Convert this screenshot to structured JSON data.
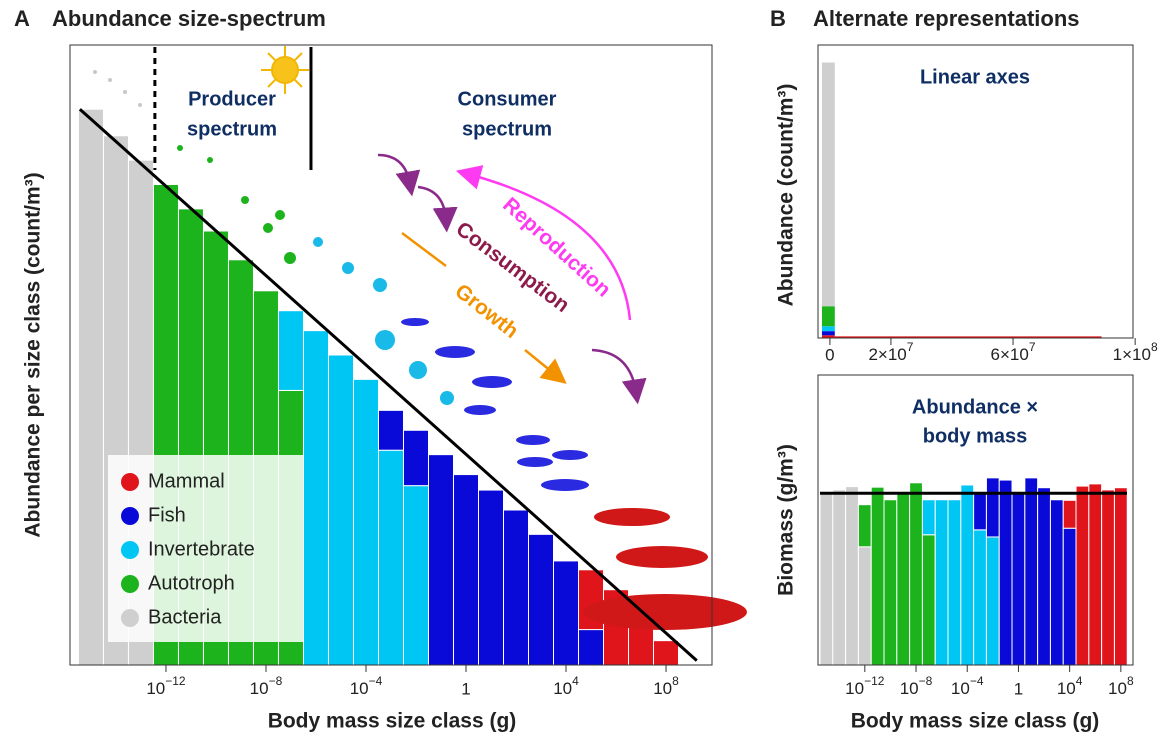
{
  "chart_data": [
    {
      "type": "histogram",
      "panel": "A",
      "title": "Abundance size-spectrum",
      "xlabel": "Body mass size class (g)",
      "ylabel": "Abundance per size class (count/m³)",
      "xscale": "log",
      "xlim": [
        1.45e-16,
        6900000000.0
      ],
      "xticks": [
        {
          "value": 1e-12,
          "label": "10−12"
        },
        {
          "value": 1e-08,
          "label": "10−8"
        },
        {
          "value": 0.0001,
          "label": "10−4"
        },
        1,
        {
          "value": 10000,
          "label": "104"
        },
        {
          "value": 100000000,
          "label": "108"
        }
      ],
      "ylim": [
        0,
        28
      ],
      "bins": [
        3.16e-16,
        3.16e-15,
        3.16e-14,
        3.16e-13,
        3.16e-12,
        3.16e-11,
        3.16e-10,
        3.16e-09,
        3.16e-08,
        3.16e-07,
        3.16e-06,
        3.16e-05,
        0.000316,
        0.00316,
        0.0316,
        0.316,
        3.16,
        31.6,
        316,
        3160,
        31600,
        316000,
        3160000,
        31600000,
        316000000
      ],
      "edgecolor": "#ffffff",
      "legend": "lower left",
      "series": [
        {
          "name": "Mammal",
          "color": "#e0141b",
          "values": [
            null,
            null,
            null,
            null,
            null,
            null,
            null,
            null,
            null,
            null,
            null,
            null,
            null,
            null,
            null,
            null,
            null,
            null,
            null,
            null,
            2.7,
            3.4,
            2.3,
            1.1
          ]
        },
        {
          "name": "Fish",
          "color": "#0a0ad8",
          "values": [
            null,
            null,
            null,
            null,
            null,
            null,
            null,
            null,
            null,
            null,
            null,
            null,
            1.8,
            2.5,
            9.5,
            8.6,
            7.9,
            7.0,
            5.9,
            4.7,
            1.6,
            null,
            null,
            null
          ]
        },
        {
          "name": "Invertebrate",
          "color": "#00c6f4",
          "values": [
            null,
            null,
            null,
            null,
            null,
            null,
            null,
            null,
            3.6,
            15.1,
            14.0,
            12.9,
            9.7,
            8.1,
            null,
            null,
            null,
            null,
            null,
            null,
            null,
            null,
            null,
            null
          ]
        },
        {
          "name": "Autotroph",
          "color": "#1db31d",
          "values": [
            null,
            null,
            null,
            21.7,
            20.6,
            19.6,
            18.3,
            16.9,
            12.4,
            null,
            null,
            null,
            null,
            null,
            null,
            null,
            null,
            null,
            null,
            null,
            null,
            null,
            null,
            null
          ]
        },
        {
          "name": "Bacteria",
          "color": "#cfcfcf",
          "values": [
            25.1,
            23.9,
            22.8,
            null,
            null,
            null,
            null,
            null,
            null,
            null,
            null,
            null,
            null,
            null,
            null,
            null,
            null,
            null,
            null,
            null,
            null,
            null,
            null,
            null
          ]
        }
      ],
      "trend": {
        "x": [
          3.6e-16,
          1700000000.0
        ],
        "y": [
          25.1,
          0.2
        ]
      },
      "xlines": [
        {
          "value": 3.6e-13,
          "style": "dashed"
        },
        {
          "value": 6.3e-07,
          "style": "solid"
        }
      ],
      "annotations": {
        "producer": [
          "Producer",
          "spectrum"
        ],
        "consumer": [
          "Consumer",
          "spectrum"
        ],
        "reproduction": "Reproduction",
        "consumption": "Consumption",
        "growth": "Growth"
      }
    },
    {
      "type": "histogram",
      "panel": "B",
      "title": "Alternate representations",
      "subtitle": "Linear axes",
      "ylabel": "Abundance (count/m³)",
      "xscale": "linear",
      "xlim": [
        -3900000,
        99300000
      ],
      "xticks": [
        0,
        {
          "value": 20000000,
          "label": "2×107"
        },
        {
          "value": 60000000,
          "label": "6×107"
        },
        {
          "value": 100000000,
          "label": "1×108"
        }
      ],
      "ylim": [
        0,
        1.07
      ],
      "bins": [
        -2600000,
        1600000,
        89000000
      ],
      "series": [
        {
          "color": "#cfcfcf",
          "values": [
            0.89,
            null
          ]
        },
        {
          "color": "#1db31d",
          "values": [
            0.073,
            null
          ]
        },
        {
          "color": "#00c6f4",
          "values": [
            0.018,
            null
          ]
        },
        {
          "color": "#0a0ad8",
          "values": [
            0.015,
            null
          ]
        },
        {
          "color": "#e0141b",
          "values": [
            0.01,
            0.006
          ]
        }
      ]
    },
    {
      "type": "histogram",
      "subtitle": [
        "Abundance ×",
        "body mass"
      ],
      "xlabel": "Body mass size class (g)",
      "ylabel": "Biomass (g/m³)",
      "xscale": "log",
      "xlim": [
        2.2e-16,
        890000000.0
      ],
      "xticks": [
        {
          "value": 1e-12,
          "label": "10−12"
        },
        {
          "value": 1e-08,
          "label": "10−8"
        },
        {
          "value": 0.0001,
          "label": "10−4"
        },
        1,
        {
          "value": 10000,
          "label": "104"
        },
        {
          "value": 100000000,
          "label": "108"
        }
      ],
      "ylim": [
        0,
        5.3
      ],
      "bins": [
        3.16e-16,
        3.16e-15,
        3.16e-14,
        3.16e-13,
        3.16e-12,
        3.16e-11,
        3.16e-10,
        3.16e-09,
        3.16e-08,
        3.16e-07,
        3.16e-06,
        3.16e-05,
        0.000316,
        0.00316,
        0.0316,
        0.316,
        3.16,
        31.6,
        316,
        3160,
        31600,
        316000,
        3160000,
        31600000,
        316000000
      ],
      "edgecolor": "#ffffff",
      "series": [
        {
          "color": "#e0141b",
          "values": [
            null,
            null,
            null,
            null,
            null,
            null,
            null,
            null,
            null,
            null,
            null,
            null,
            null,
            null,
            null,
            null,
            null,
            null,
            null,
            0.51,
            3.27,
            3.31,
            3.2,
            3.24
          ]
        },
        {
          "color": "#0a0ad8",
          "values": [
            null,
            null,
            null,
            null,
            null,
            null,
            null,
            null,
            null,
            null,
            null,
            null,
            0.68,
            1.08,
            3.38,
            3.14,
            3.42,
            3.24,
            3.02,
            2.5,
            null,
            null,
            null,
            null
          ]
        },
        {
          "color": "#00c6f4",
          "values": [
            null,
            null,
            null,
            null,
            null,
            null,
            null,
            null,
            0.64,
            3.02,
            3.02,
            3.29,
            2.47,
            2.34,
            null,
            null,
            null,
            null,
            null,
            null,
            null,
            null,
            null,
            null
          ]
        },
        {
          "color": "#1db31d",
          "values": [
            null,
            null,
            null,
            0.77,
            3.25,
            3.02,
            3.16,
            3.33,
            2.38,
            null,
            null,
            null,
            null,
            null,
            null,
            null,
            null,
            null,
            null,
            null,
            null,
            null,
            null,
            null
          ]
        },
        {
          "color": "#cfcfcf",
          "values": [
            3.16,
            3.2,
            3.26,
            2.16,
            null,
            null,
            null,
            null,
            null,
            null,
            null,
            null,
            null,
            null,
            null,
            null,
            null,
            null,
            null,
            null,
            null,
            null,
            null,
            null
          ]
        }
      ],
      "hline": 3.14
    }
  ]
}
